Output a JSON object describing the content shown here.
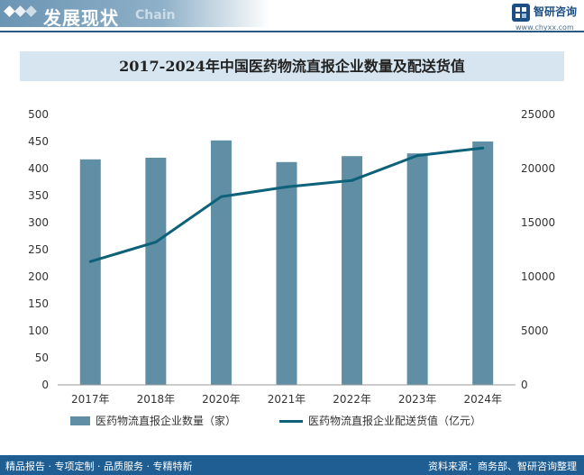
{
  "header": {
    "section_title": "发展现状",
    "section_en": "Chain",
    "brand_name": "智研咨询",
    "brand_url": "www.chyxx.com"
  },
  "chart_data": {
    "type": "bar+line",
    "title": "2017-2024年中国医药物流直报企业数量及配送货值",
    "categories": [
      "2017年",
      "2018年",
      "2020年",
      "2021年",
      "2022年",
      "2023年",
      "2024年"
    ],
    "series": [
      {
        "name": "医药物流直报企业数量（家）",
        "type": "bar",
        "axis": "left",
        "values": [
          417,
          420,
          452,
          412,
          423,
          428,
          450
        ],
        "color": "#5f8ea5"
      },
      {
        "name": "医药物流直报企业配送货值（亿元）",
        "type": "line",
        "axis": "right",
        "values": [
          11400,
          13200,
          17400,
          18300,
          18900,
          21200,
          21900
        ],
        "color": "#0d6179"
      }
    ],
    "y_left": {
      "min": 0,
      "max": 500,
      "step": 50,
      "ticks": [
        "0",
        "50",
        "100",
        "150",
        "200",
        "250",
        "300",
        "350",
        "400",
        "450",
        "500"
      ]
    },
    "y_right": {
      "min": 0,
      "max": 25000,
      "step": 5000,
      "ticks": [
        "0",
        "5000",
        "10000",
        "15000",
        "20000",
        "25000"
      ]
    },
    "legend_position": "bottom",
    "grid": false
  },
  "footer": {
    "slogan": "精品报告 · 专项定制 · 品质服务 · 专精特新",
    "source": "资料来源：商务部、智研咨询整理"
  }
}
